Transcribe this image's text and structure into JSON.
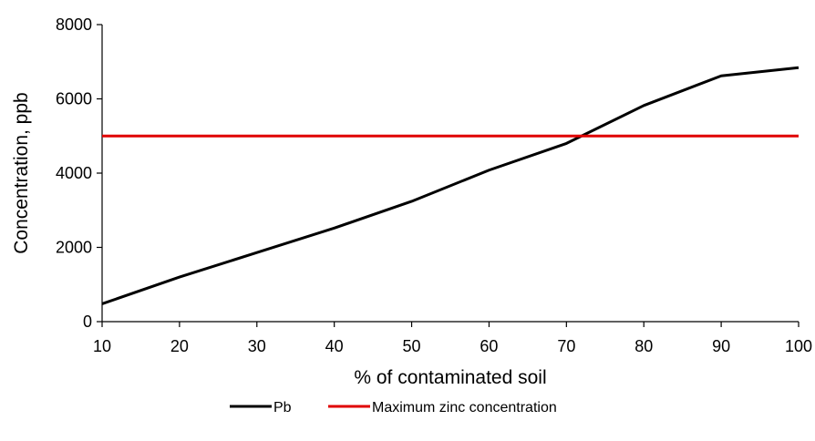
{
  "chart_data": {
    "type": "line",
    "title": "",
    "xlabel": "% of contaminated soil",
    "ylabel": "Concentration, ppb",
    "x": [
      10,
      20,
      30,
      40,
      50,
      60,
      70,
      80,
      90,
      100
    ],
    "xlim": [
      10,
      100
    ],
    "ylim": [
      0,
      8000
    ],
    "x_ticks": [
      "10",
      "20",
      "30",
      "40",
      "50",
      "60",
      "70",
      "80",
      "90",
      "100"
    ],
    "y_ticks": [
      "0",
      "2000",
      "4000",
      "6000",
      "8000"
    ],
    "grid": false,
    "legend_position": "bottom",
    "series": [
      {
        "name": "Pb",
        "color": "#000000",
        "values": [
          480,
          1200,
          1860,
          2520,
          3240,
          4080,
          4800,
          5820,
          6620,
          6840
        ]
      },
      {
        "name": "Maximum zinc concentration",
        "color": "#e00000",
        "values": [
          5000,
          5000,
          5000,
          5000,
          5000,
          5000,
          5000,
          5000,
          5000,
          5000
        ]
      }
    ]
  }
}
